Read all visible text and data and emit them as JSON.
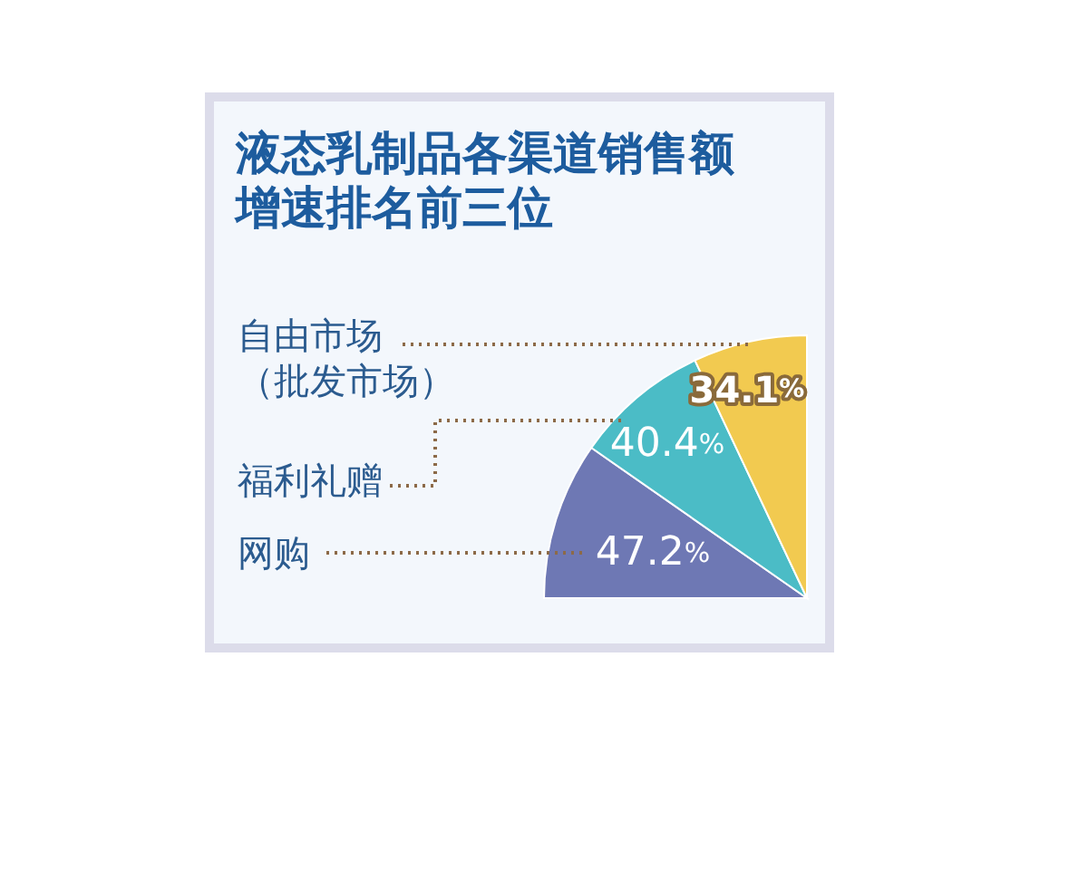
{
  "chart_data": {
    "type": "pie",
    "title": "液态乳制品各渠道销售额增速排名前三位",
    "categories": [
      "网购",
      "福利礼赠",
      "自由市场（批发市场）"
    ],
    "values": [
      47.2,
      40.4,
      34.1
    ],
    "colors": [
      "#6e78b4",
      "#4bbcc6",
      "#f2ca50"
    ],
    "value_labels": [
      "47.2%",
      "40.4%",
      "34.1%"
    ]
  }
}
